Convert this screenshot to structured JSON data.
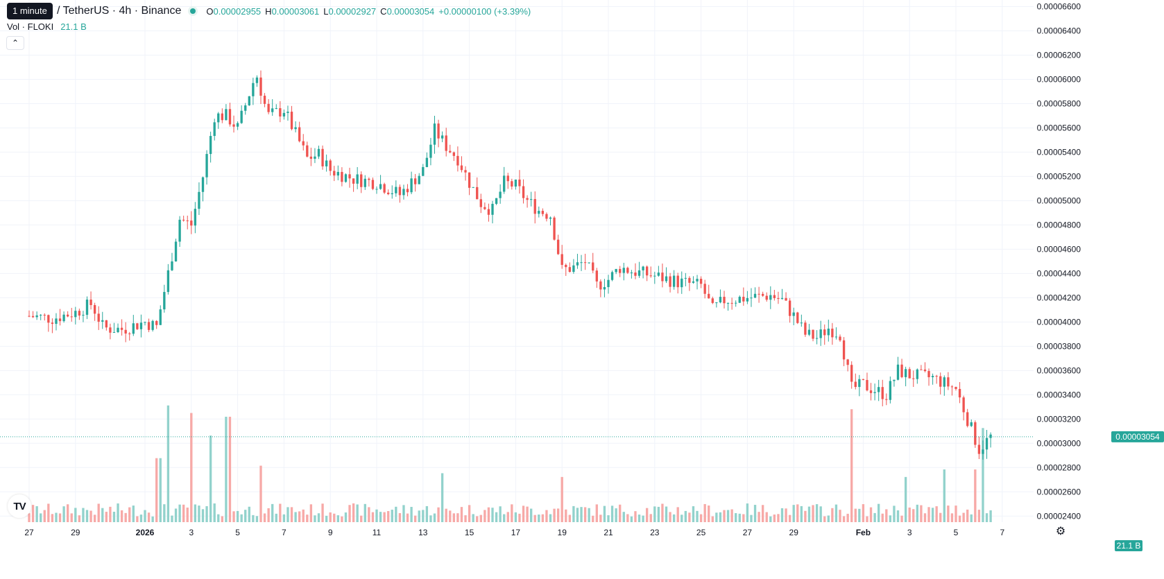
{
  "header": {
    "tooltip": "1 minute",
    "title": "/ TetherUS · 4h · Binance",
    "ohlc": [
      {
        "key": "O",
        "value": "0.00002955"
      },
      {
        "key": "H",
        "value": "0.00003061"
      },
      {
        "key": "L",
        "value": "0.00002927"
      },
      {
        "key": "C",
        "value": "0.00003054"
      }
    ],
    "change": "+0.00000100 (+3.39%)"
  },
  "volume_legend": {
    "label": "Vol · FLOKI",
    "value": "21.1 B"
  },
  "colors": {
    "up": "#26a69a",
    "down": "#ef5350",
    "up_vol": "#92d2cc",
    "down_vol": "#f7a9a7",
    "grid": "#f0f3fa"
  },
  "icons": {
    "collapse": "chevron-up-icon",
    "logo": "tradingview-logo-icon",
    "settings": "gear-icon"
  },
  "chart_data": {
    "type": "candlestick",
    "price_axis_labels": [
      "0.00006600",
      "0.00006400",
      "0.00006200",
      "0.00006000",
      "0.00005800",
      "0.00005600",
      "0.00005400",
      "0.00005200",
      "0.00005000",
      "0.00004800",
      "0.00004600",
      "0.00004400",
      "0.00004200",
      "0.00004000",
      "0.00003800",
      "0.00003600",
      "0.00003400",
      "0.00003200",
      "0.00003000",
      "0.00002800",
      "0.00002600",
      "0.00002400"
    ],
    "price_ylim": [
      2.35e-05,
      6.62e-05
    ],
    "time_axis_labels": [
      {
        "label": "27",
        "day": 0
      },
      {
        "label": "29",
        "day": 2
      },
      {
        "label": "2026",
        "day": 5
      },
      {
        "label": "3",
        "day": 7
      },
      {
        "label": "5",
        "day": 9
      },
      {
        "label": "7",
        "day": 11
      },
      {
        "label": "9",
        "day": 13
      },
      {
        "label": "11",
        "day": 15
      },
      {
        "label": "13",
        "day": 17
      },
      {
        "label": "15",
        "day": 19
      },
      {
        "label": "17",
        "day": 21
      },
      {
        "label": "19",
        "day": 23
      },
      {
        "label": "21",
        "day": 25
      },
      {
        "label": "23",
        "day": 27
      },
      {
        "label": "25",
        "day": 29
      },
      {
        "label": "27",
        "day": 31
      },
      {
        "label": "29",
        "day": 33
      },
      {
        "label": "Feb",
        "day": 36
      },
      {
        "label": "3",
        "day": 38
      },
      {
        "label": "5",
        "day": 40
      },
      {
        "label": "7",
        "day": 42
      }
    ],
    "last_price": {
      "label": "0.00003054",
      "value": 3.054e-05
    },
    "last_volume": {
      "label": "21.1 B"
    },
    "close_path": [
      [
        0,
        4.05e-05
      ],
      [
        1,
        4.03e-05
      ],
      [
        2,
        4.08e-05
      ],
      [
        2.7,
        4.15e-05
      ],
      [
        3.2,
        3.95e-05
      ],
      [
        4,
        3.94e-05
      ],
      [
        5,
        4e-05
      ],
      [
        5.5,
        3.96e-05
      ],
      [
        6,
        4.4e-05
      ],
      [
        6.5,
        4.85e-05
      ],
      [
        7,
        4.8e-05
      ],
      [
        7.5,
        5.2e-05
      ],
      [
        8,
        5.7e-05
      ],
      [
        8.5,
        5.7e-05
      ],
      [
        9,
        5.6e-05
      ],
      [
        9.8,
        6.05e-05
      ],
      [
        10.3,
        5.7e-05
      ],
      [
        11,
        5.75e-05
      ],
      [
        11.5,
        5.55e-05
      ],
      [
        12,
        5.35e-05
      ],
      [
        12.5,
        5.38e-05
      ],
      [
        13,
        5.25e-05
      ],
      [
        14,
        5.18e-05
      ],
      [
        15,
        5.15e-05
      ],
      [
        16,
        5.05e-05
      ],
      [
        16.5,
        5.15e-05
      ],
      [
        17,
        5.25e-05
      ],
      [
        17.5,
        5.58e-05
      ],
      [
        18,
        5.45e-05
      ],
      [
        18.5,
        5.35e-05
      ],
      [
        19,
        5.15e-05
      ],
      [
        19.5,
        4.98e-05
      ],
      [
        20,
        4.92e-05
      ],
      [
        20.5,
        5.15e-05
      ],
      [
        21,
        5.12e-05
      ],
      [
        21.5,
        5e-05
      ],
      [
        22,
        4.92e-05
      ],
      [
        22.5,
        4.88e-05
      ],
      [
        23,
        4.43e-05
      ],
      [
        23.5,
        4.45e-05
      ],
      [
        24,
        4.5e-05
      ],
      [
        24.5,
        4.3e-05
      ],
      [
        25,
        4.35e-05
      ],
      [
        25.5,
        4.45e-05
      ],
      [
        26,
        4.42e-05
      ],
      [
        27,
        4.38e-05
      ],
      [
        28,
        4.33e-05
      ],
      [
        29,
        4.3e-05
      ],
      [
        29.5,
        4.1e-05
      ],
      [
        30,
        4.18e-05
      ],
      [
        31,
        4.2e-05
      ],
      [
        32,
        4.22e-05
      ],
      [
        32.5,
        4.18e-05
      ],
      [
        33,
        4.05e-05
      ],
      [
        33.5,
        3.9e-05
      ],
      [
        34,
        3.87e-05
      ],
      [
        34.5,
        3.95e-05
      ],
      [
        35,
        3.9e-05
      ],
      [
        35.5,
        3.45e-05
      ],
      [
        36,
        3.48e-05
      ],
      [
        37,
        3.4e-05
      ],
      [
        37.5,
        3.6e-05
      ],
      [
        38,
        3.56e-05
      ],
      [
        39,
        3.54e-05
      ],
      [
        40,
        3.45e-05
      ],
      [
        40.5,
        3.2e-05
      ],
      [
        41,
        2.95e-05
      ],
      [
        41.5,
        3.054e-05
      ]
    ],
    "volume_ylim": [
      0,
      3.5
    ],
    "volume_unit": "B",
    "volume_peaks": [
      {
        "day": 6.0,
        "value": 3.1,
        "color": "up"
      },
      {
        "day": 7.0,
        "value": 2.9,
        "color": "up"
      },
      {
        "day": 7.8,
        "value": 2.3,
        "color": "down"
      },
      {
        "day": 8.6,
        "value": 2.8,
        "color": "up"
      },
      {
        "day": 5.6,
        "value": 1.7,
        "color": "up"
      },
      {
        "day": 10.0,
        "value": 1.5,
        "color": "down"
      },
      {
        "day": 17.8,
        "value": 1.3,
        "color": "up"
      },
      {
        "day": 23.0,
        "value": 1.2,
        "color": "down"
      },
      {
        "day": 35.5,
        "value": 3.0,
        "color": "down"
      },
      {
        "day": 37.8,
        "value": 1.2,
        "color": "up"
      },
      {
        "day": 39.5,
        "value": 1.4,
        "color": "down"
      },
      {
        "day": 40.8,
        "value": 1.4,
        "color": "up"
      },
      {
        "day": 41.2,
        "value": 2.5,
        "color": "down"
      }
    ]
  }
}
